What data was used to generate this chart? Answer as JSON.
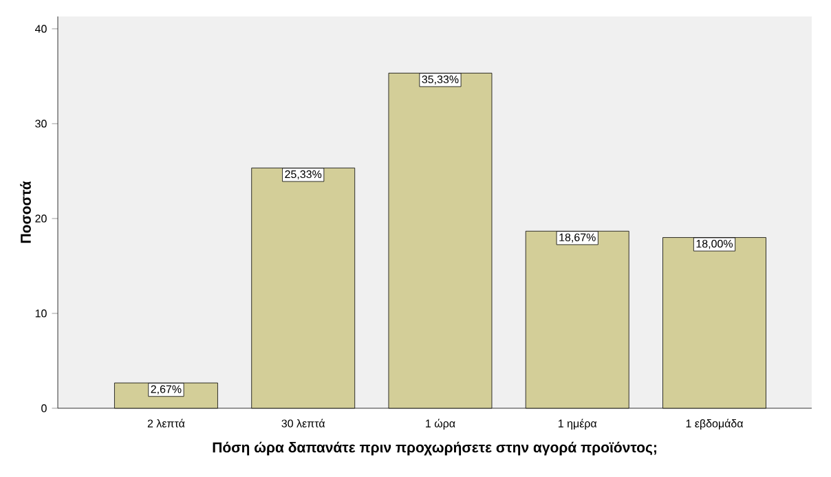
{
  "chart_data": {
    "type": "bar",
    "xlabel": "Πόση ώρα δαπανάτε πριν προχωρήσετε στην αγορά προϊόντος;",
    "ylabel": "Ποσοστά",
    "categories": [
      "2 λεπτά",
      "30 λεπτά",
      "1 ώρα",
      "1 ημέρα",
      "1 εβδομάδα"
    ],
    "values": [
      2.67,
      25.33,
      35.33,
      18.67,
      18.0
    ],
    "value_labels": [
      "2,67%",
      "25,33%",
      "35,33%",
      "18,67%",
      "18,00%"
    ],
    "color": "#d3ce98",
    "ylim": [
      0,
      41.3
    ],
    "yticks": [
      0,
      10,
      20,
      30,
      40
    ],
    "grid": false
  }
}
